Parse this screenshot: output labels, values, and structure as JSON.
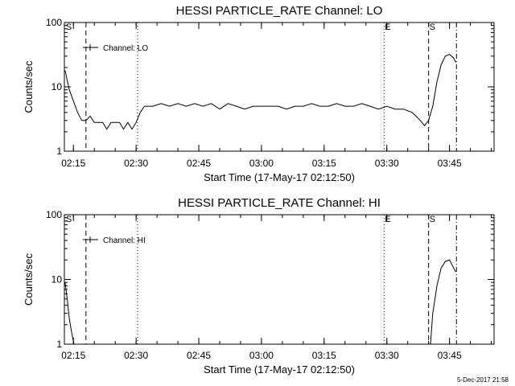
{
  "footer": "5-Dec-2017 21:58",
  "chart_data": [
    {
      "type": "line",
      "title": "HESSI PARTICLE_RATE Channel: LO",
      "xlabel": "Start Time (17-May-17 02:12:50)",
      "ylabel": "Counts/sec",
      "legend": "Channel: LO",
      "legend_position": "top-left",
      "yscale": "log",
      "ylim": [
        1,
        100
      ],
      "xlim": [
        "02:12:50",
        "03:55:40"
      ],
      "grid": false,
      "x_ticks": [
        "02:15",
        "02:30",
        "02:45",
        "03:00",
        "03:15",
        "03:30",
        "03:45"
      ],
      "y_ticks": [
        "1",
        "10",
        "100"
      ],
      "markers": [
        {
          "label": "S",
          "x": "02:13:00",
          "style": "none"
        },
        {
          "label": "",
          "x": "02:18:00",
          "style": "dashed"
        },
        {
          "label": "",
          "x": "02:30:20",
          "style": "dotted"
        },
        {
          "label": "E",
          "x": "03:29:20",
          "style": "dotted"
        },
        {
          "label": "S",
          "x": "03:40:00",
          "style": "dashed"
        },
        {
          "label": "",
          "x": "03:46:40",
          "style": "dashdot"
        }
      ],
      "series": [
        {
          "name": "Channel: LO",
          "x": [
            "02:13:00",
            "02:14:00",
            "02:15:00",
            "02:16:00",
            "02:17:00",
            "02:18:00",
            "02:19:00",
            "02:20:00",
            "02:21:00",
            "02:22:00",
            "02:23:00",
            "02:24:00",
            "02:25:00",
            "02:26:00",
            "02:27:00",
            "02:28:00",
            "02:29:00",
            "02:30:00",
            "02:31:00",
            "02:32:00",
            "02:34:00",
            "02:36:00",
            "02:38:00",
            "02:40:00",
            "02:42:00",
            "02:44:00",
            "02:46:00",
            "02:48:00",
            "02:50:00",
            "02:52:00",
            "02:54:00",
            "02:56:00",
            "02:58:00",
            "03:00:00",
            "03:02:00",
            "03:04:00",
            "03:06:00",
            "03:08:00",
            "03:10:00",
            "03:12:00",
            "03:14:00",
            "03:16:00",
            "03:18:00",
            "03:20:00",
            "03:22:00",
            "03:24:00",
            "03:26:00",
            "03:28:00",
            "03:30:00",
            "03:32:00",
            "03:34:00",
            "03:36:00",
            "03:37:00",
            "03:38:00",
            "03:39:00",
            "03:40:00",
            "03:41:00",
            "03:42:00",
            "03:43:00",
            "03:44:00",
            "03:45:00",
            "03:46:00",
            "03:46:30"
          ],
          "y": [
            18,
            9,
            6,
            4,
            3,
            3,
            3.5,
            2.8,
            2.8,
            2.8,
            2.2,
            2.8,
            2.8,
            2.8,
            2.2,
            2.8,
            2.2,
            2.8,
            4,
            5,
            5,
            5.5,
            5,
            5.5,
            5,
            5.5,
            5,
            5.5,
            4.5,
            5.5,
            5,
            4.5,
            5,
            5,
            5,
            5,
            4.5,
            5,
            5,
            5.5,
            5,
            5,
            5.5,
            5,
            5,
            5.5,
            5,
            4.5,
            5,
            4.5,
            4.5,
            4,
            3.5,
            3,
            2.5,
            3,
            5,
            12,
            22,
            30,
            32,
            28,
            24
          ]
        }
      ]
    },
    {
      "type": "line",
      "title": "HESSI PARTICLE_RATE Channel: HI",
      "xlabel": "Start Time (17-May-17 02:12:50)",
      "ylabel": "Counts/sec",
      "legend": "Channel: HI",
      "legend_position": "top-left",
      "yscale": "log",
      "ylim": [
        1,
        100
      ],
      "xlim": [
        "02:12:50",
        "03:55:40"
      ],
      "grid": false,
      "x_ticks": [
        "02:15",
        "02:30",
        "02:45",
        "03:00",
        "03:15",
        "03:30",
        "03:45"
      ],
      "y_ticks": [
        "1",
        "10",
        "100"
      ],
      "markers": [
        {
          "label": "S",
          "x": "02:13:00",
          "style": "none"
        },
        {
          "label": "",
          "x": "02:18:00",
          "style": "dashed"
        },
        {
          "label": "",
          "x": "02:30:20",
          "style": "dotted"
        },
        {
          "label": "E",
          "x": "03:29:20",
          "style": "dotted"
        },
        {
          "label": "S",
          "x": "03:40:00",
          "style": "dashed"
        },
        {
          "label": "",
          "x": "03:46:40",
          "style": "dashdot"
        }
      ],
      "series": [
        {
          "name": "Channel: HI",
          "x": [
            "02:13:00",
            "02:13:30",
            "02:14:00",
            "02:14:30",
            "02:15:00",
            "02:15:20",
            "03:40:20",
            "03:41:00",
            "03:42:00",
            "03:43:00",
            "03:44:00",
            "03:45:00",
            "03:46:00",
            "03:46:30"
          ],
          "y": [
            9,
            5,
            2.5,
            1.6,
            1.1,
            0.8,
            0.8,
            3,
            8,
            15,
            19,
            20,
            15,
            13
          ]
        }
      ]
    }
  ]
}
